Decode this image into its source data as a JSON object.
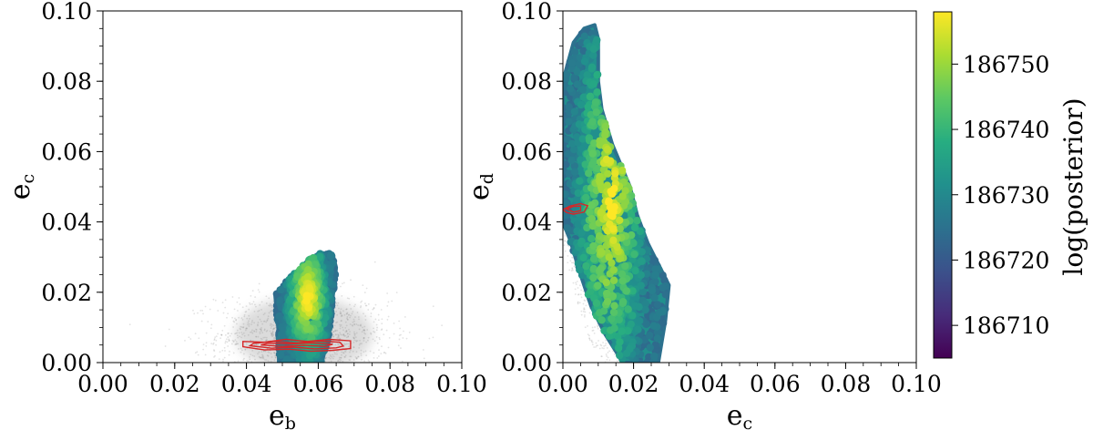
{
  "chart_data": [
    {
      "type": "scatter",
      "xlabel_main": "e",
      "xlabel_sub": "b",
      "ylabel_main": "e",
      "ylabel_sub": "c",
      "xlim": [
        0.0,
        0.1
      ],
      "ylim": [
        0.0,
        0.1
      ],
      "xticks": [
        "0.00",
        "0.02",
        "0.04",
        "0.06",
        "0.08",
        "0.10"
      ],
      "yticks": [
        "0.00",
        "0.02",
        "0.04",
        "0.06",
        "0.08",
        "0.10"
      ],
      "grid": false,
      "layers": [
        {
          "kind": "background-samples",
          "color": "#808080",
          "approx_center": [
            0.056,
            0.008
          ],
          "approx_spread": [
            0.012,
            0.006
          ]
        },
        {
          "kind": "posterior-colored-samples",
          "colormap": "viridis",
          "region_polygon": [
            [
              0.049,
              0.0
            ],
            [
              0.049,
              0.008
            ],
            [
              0.048,
              0.019
            ],
            [
              0.051,
              0.023
            ],
            [
              0.054,
              0.026
            ],
            [
              0.057,
              0.029
            ],
            [
              0.06,
              0.031
            ],
            [
              0.064,
              0.031
            ],
            [
              0.065,
              0.027
            ],
            [
              0.064,
              0.018
            ],
            [
              0.063,
              0.008
            ],
            [
              0.061,
              0.0
            ]
          ]
        },
        {
          "kind": "contours",
          "color": "#d62728",
          "rings": [
            [
              [
                0.039,
                0.0045
              ],
              [
                0.045,
                0.0036
              ],
              [
                0.052,
                0.0038
              ],
              [
                0.058,
                0.0032
              ],
              [
                0.064,
                0.0035
              ],
              [
                0.069,
                0.004
              ],
              [
                0.069,
                0.0062
              ],
              [
                0.063,
                0.0066
              ],
              [
                0.057,
                0.006
              ],
              [
                0.051,
                0.0066
              ],
              [
                0.045,
                0.0058
              ],
              [
                0.039,
                0.006
              ]
            ],
            [
              [
                0.041,
                0.0048
              ],
              [
                0.047,
                0.0041
              ],
              [
                0.053,
                0.0044
              ],
              [
                0.059,
                0.0039
              ],
              [
                0.065,
                0.0042
              ],
              [
                0.067,
                0.0047
              ],
              [
                0.066,
                0.0058
              ],
              [
                0.06,
                0.0061
              ],
              [
                0.054,
                0.0056
              ],
              [
                0.048,
                0.006
              ],
              [
                0.042,
                0.0055
              ]
            ],
            [
              [
                0.044,
                0.005
              ],
              [
                0.05,
                0.0046
              ],
              [
                0.056,
                0.0049
              ],
              [
                0.062,
                0.0046
              ],
              [
                0.064,
                0.0052
              ],
              [
                0.058,
                0.0056
              ],
              [
                0.052,
                0.0053
              ],
              [
                0.046,
                0.0055
              ]
            ]
          ]
        }
      ]
    },
    {
      "type": "scatter",
      "xlabel_main": "e",
      "xlabel_sub": "c",
      "ylabel_main": "e",
      "ylabel_sub": "d",
      "xlim": [
        0.0,
        0.1
      ],
      "ylim": [
        0.0,
        0.1
      ],
      "xticks": [
        "0.00",
        "0.02",
        "0.04",
        "0.06",
        "0.08",
        "0.10"
      ],
      "yticks": [
        "0.00",
        "0.02",
        "0.04",
        "0.06",
        "0.08",
        "0.10"
      ],
      "grid": false,
      "layers": [
        {
          "kind": "background-samples",
          "color": "#b0b0b0",
          "region_polygon": [
            [
              0.0,
              0.035
            ],
            [
              0.003,
              0.02
            ],
            [
              0.008,
              0.005
            ],
            [
              0.012,
              0.0
            ],
            [
              0.018,
              0.0
            ],
            [
              0.015,
              0.02
            ],
            [
              0.012,
              0.045
            ],
            [
              0.01,
              0.07
            ],
            [
              0.008,
              0.09
            ],
            [
              0.004,
              0.088
            ],
            [
              0.0,
              0.06
            ]
          ]
        },
        {
          "kind": "posterior-colored-samples",
          "colormap": "viridis",
          "region_polygon": [
            [
              0.0,
              0.08
            ],
            [
              0.003,
              0.091
            ],
            [
              0.006,
              0.095
            ],
            [
              0.009,
              0.096
            ],
            [
              0.01,
              0.092
            ],
            [
              0.01,
              0.08
            ],
            [
              0.011,
              0.072
            ],
            [
              0.014,
              0.062
            ],
            [
              0.019,
              0.05
            ],
            [
              0.021,
              0.042
            ],
            [
              0.024,
              0.034
            ],
            [
              0.028,
              0.026
            ],
            [
              0.03,
              0.022
            ],
            [
              0.029,
              0.012
            ],
            [
              0.027,
              0.0
            ],
            [
              0.017,
              0.0
            ],
            [
              0.012,
              0.008
            ],
            [
              0.008,
              0.016
            ],
            [
              0.005,
              0.025
            ],
            [
              0.002,
              0.035
            ],
            [
              0.0,
              0.04
            ]
          ]
        },
        {
          "kind": "contours",
          "color": "#d62728",
          "rings": [
            [
              [
                0.0,
                0.0435
              ],
              [
                0.002,
                0.0445
              ],
              [
                0.005,
                0.0452
              ],
              [
                0.007,
                0.0446
              ],
              [
                0.006,
                0.0428
              ],
              [
                0.003,
                0.0422
              ],
              [
                0.001,
                0.0427
              ]
            ],
            [
              [
                0.001,
                0.0437
              ],
              [
                0.003,
                0.0444
              ],
              [
                0.005,
                0.0445
              ],
              [
                0.005,
                0.0432
              ],
              [
                0.003,
                0.0428
              ]
            ]
          ]
        }
      ]
    }
  ],
  "colorbar": {
    "label": "log(posterior)",
    "ticks": [
      "186750",
      "186740",
      "186730",
      "186720",
      "186710"
    ],
    "tick_values": [
      186750,
      186740,
      186730,
      186720,
      186710
    ],
    "range": [
      186705,
      186758
    ],
    "colormap": "viridis"
  },
  "colors": {
    "contour": "#d62728",
    "background_samples": "#7f7f7f",
    "viridis": [
      "#440154",
      "#472c7a",
      "#3b518b",
      "#2c718e",
      "#21908d",
      "#27ad81",
      "#5cc863",
      "#aadc32",
      "#fde725"
    ]
  }
}
